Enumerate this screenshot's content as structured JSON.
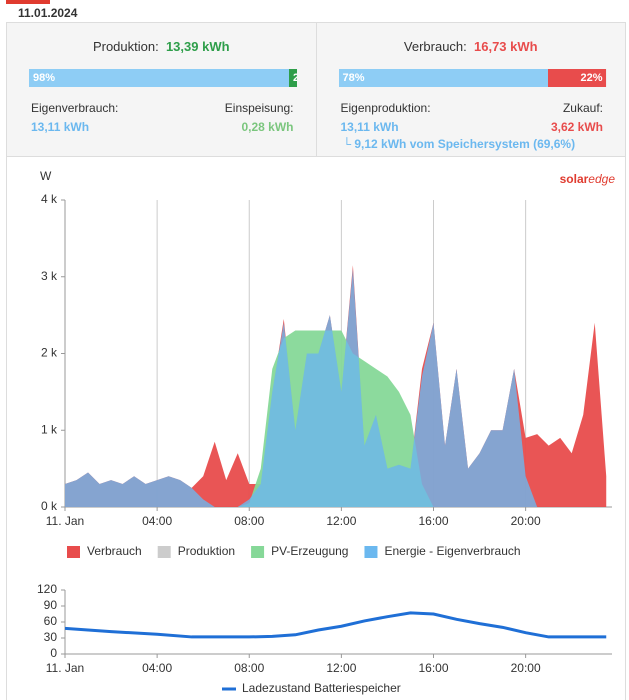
{
  "date": "11.01.2024",
  "summary": [
    {
      "title": "Produktion:",
      "total": "13,39 kWh",
      "total_color": "#2e9e4a",
      "bar": [
        {
          "value": 98,
          "label": "98%",
          "color": "#8ecdf5"
        },
        {
          "value": 2,
          "label": "2%",
          "color": "#2e9e4a"
        }
      ],
      "left": {
        "label": "Eigenverbrauch:",
        "value": "13,11 kWh",
        "color": "#6bb8ef"
      },
      "right": {
        "label": "Einspeisung:",
        "value": "0,28 kWh",
        "color": "#7bc67e"
      }
    },
    {
      "title": "Verbrauch:",
      "total": "16,73 kWh",
      "total_color": "#e84c4c",
      "bar": [
        {
          "value": 78,
          "label": "78%",
          "color": "#8ecdf5"
        },
        {
          "value": 22,
          "label": "22%",
          "color": "#e84c4c"
        }
      ],
      "left": {
        "label": "Eigenproduktion:",
        "value": "13,11 kWh",
        "color": "#6bb8ef"
      },
      "right": {
        "label": "Zukauf:",
        "value": "3,62 kWh",
        "color": "#e84c4c"
      },
      "note": "└ 9,12 kWh vom Speichersystem (69,6%)"
    }
  ],
  "chart_data": [
    {
      "type": "area",
      "y_label": "W",
      "logo": [
        "solar",
        "edge"
      ],
      "x": [
        0,
        0.5,
        1,
        1.5,
        2,
        2.5,
        3,
        3.5,
        4,
        4.5,
        5,
        5.5,
        6,
        6.5,
        7,
        7.5,
        8,
        8.5,
        9,
        9.5,
        10,
        10.5,
        11,
        11.5,
        12,
        12.5,
        13,
        13.5,
        14,
        14.5,
        15,
        15.5,
        16,
        16.5,
        17,
        17.5,
        18,
        18.5,
        19,
        19.5,
        20,
        20.5,
        21,
        21.5,
        22,
        22.5,
        23,
        23.5
      ],
      "series": [
        {
          "name": "Verbrauch",
          "color": "#e84c4c",
          "values": [
            300,
            350,
            450,
            300,
            350,
            300,
            400,
            300,
            350,
            400,
            350,
            250,
            400,
            850,
            350,
            700,
            300,
            300,
            1500,
            2450,
            1000,
            2000,
            2000,
            2500,
            1500,
            3150,
            800,
            1200,
            500,
            550,
            500,
            1800,
            2400,
            800,
            1800,
            500,
            700,
            1000,
            1000,
            1800,
            900,
            950,
            800,
            900,
            700,
            1200,
            2400,
            400
          ]
        },
        {
          "name": "PV-Erzeugung",
          "color": "#86d898",
          "values": [
            0,
            0,
            0,
            0,
            0,
            0,
            0,
            0,
            0,
            0,
            0,
            0,
            0,
            0,
            0,
            0,
            50,
            500,
            1800,
            2200,
            2300,
            2300,
            2300,
            2300,
            2300,
            2000,
            1900,
            1800,
            1700,
            1500,
            1200,
            300,
            0,
            0,
            0,
            0,
            0,
            0,
            0,
            0,
            0,
            0,
            0,
            0,
            0,
            0,
            0,
            0
          ]
        },
        {
          "name": "Energie - Eigenverbrauch",
          "color": "#6bb8ef",
          "values": [
            300,
            350,
            450,
            300,
            350,
            300,
            400,
            300,
            350,
            400,
            350,
            250,
            100,
            0,
            0,
            0,
            100,
            300,
            1500,
            2400,
            1000,
            2000,
            2000,
            2500,
            1500,
            3100,
            800,
            1200,
            500,
            550,
            500,
            1700,
            2400,
            800,
            1800,
            500,
            700,
            1000,
            1000,
            1800,
            400,
            0,
            0,
            0,
            0,
            0,
            0,
            0
          ]
        }
      ],
      "hidden_series": [
        {
          "name": "Produktion",
          "color": "#cccccc"
        }
      ],
      "xlim": [
        0,
        23.75
      ],
      "xticks": [
        {
          "value": 0,
          "label": "11. Jan"
        },
        {
          "value": 4,
          "label": "04:00"
        },
        {
          "value": 8,
          "label": "08:00"
        },
        {
          "value": 12,
          "label": "12:00"
        },
        {
          "value": 16,
          "label": "16:00"
        },
        {
          "value": 20,
          "label": "20:00"
        }
      ],
      "ylim": [
        0,
        4000
      ],
      "yticks": [
        {
          "value": 0,
          "label": "0 k"
        },
        {
          "value": 1000,
          "label": "1 k"
        },
        {
          "value": 2000,
          "label": "2 k"
        },
        {
          "value": 3000,
          "label": "3 k"
        },
        {
          "value": 4000,
          "label": "4 k"
        }
      ],
      "grid": "x"
    },
    {
      "type": "line",
      "x": [
        0,
        2,
        4,
        5.5,
        8,
        9,
        10,
        11,
        12,
        13,
        14,
        15,
        16,
        17,
        18,
        19,
        20,
        21,
        22,
        23.5
      ],
      "series": [
        {
          "name": "Ladezustand Batteriespeicher",
          "color": "#1f6fd6",
          "values": [
            48,
            42,
            37,
            32,
            32,
            33,
            36,
            45,
            52,
            62,
            70,
            77,
            75,
            65,
            57,
            50,
            40,
            32,
            32,
            32
          ]
        }
      ],
      "xlim": [
        0,
        23.75
      ],
      "xticks": [
        {
          "value": 0,
          "label": "11. Jan"
        },
        {
          "value": 4,
          "label": "04:00"
        },
        {
          "value": 8,
          "label": "08:00"
        },
        {
          "value": 12,
          "label": "12:00"
        },
        {
          "value": 16,
          "label": "16:00"
        },
        {
          "value": 20,
          "label": "20:00"
        }
      ],
      "ylim": [
        0,
        120
      ],
      "yticks": [
        0,
        30,
        60,
        90,
        120
      ],
      "grid": false
    }
  ]
}
